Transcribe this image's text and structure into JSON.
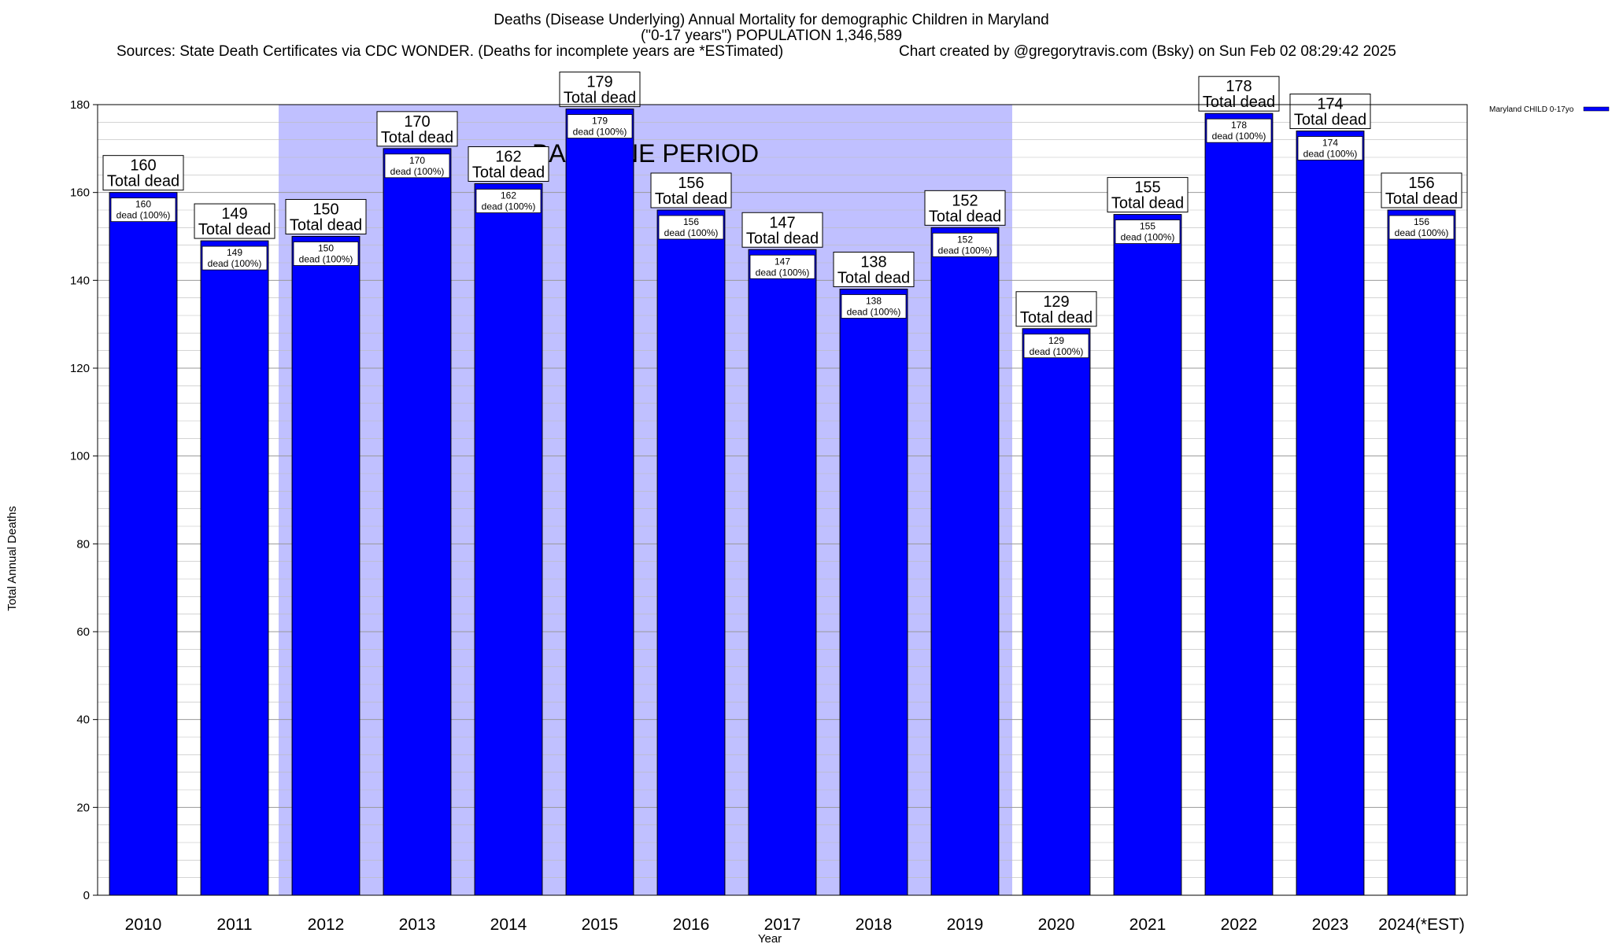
{
  "chart_data": {
    "type": "bar",
    "title_lines": [
      "Deaths (Disease Underlying) Annual Mortality for demographic Children in Maryland",
      "(\"0-17 years\") POPULATION 1,346,589",
      "Sources: State Death Certificates via CDC WONDER. (Deaths for incomplete years are *ESTimated)",
      "Chart created by @gregorytravis.com (Bsky) on Sun Feb 02 08:29:42 2025"
    ],
    "xlabel": "Year",
    "ylabel": "Total Annual Deaths",
    "ylim": [
      0,
      180
    ],
    "yticks": [
      0,
      20,
      40,
      60,
      80,
      100,
      120,
      140,
      160,
      180
    ],
    "grid": true,
    "legend": {
      "placement": "top-right",
      "entries": [
        "Maryland CHILD 0-17yo"
      ]
    },
    "categories": [
      "2010",
      "2011",
      "2012",
      "2013",
      "2014",
      "2015",
      "2016",
      "2017",
      "2018",
      "2019",
      "2020",
      "2021",
      "2022",
      "2023",
      "2024(*EST)"
    ],
    "series": [
      {
        "name": "Maryland CHILD 0-17yo",
        "values": [
          160,
          149,
          150,
          170,
          162,
          179,
          156,
          147,
          138,
          152,
          129,
          155,
          178,
          174,
          156
        ]
      }
    ],
    "total_label_suffix": "Total dead",
    "inner_label_suffix": "dead (100%)",
    "annotations": [
      {
        "text": "BASELINE PERIOD",
        "range": [
          "2012",
          "2019"
        ]
      }
    ],
    "colors": {
      "bar": "#0000ff",
      "baseline_shade": "#c0c0ff",
      "grid": "#bbbbbb"
    }
  }
}
